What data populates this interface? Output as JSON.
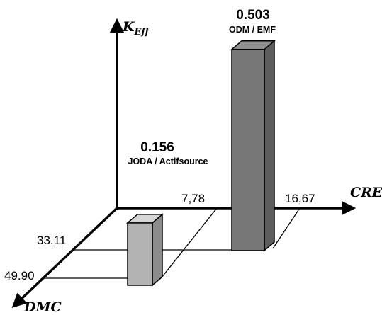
{
  "chart_data": {
    "type": "bar",
    "axes": {
      "z_label": {
        "symbol": "K",
        "subscript": "Eff"
      },
      "x_label": "CRE",
      "y_label": "DMC",
      "x_ticks": [
        "7,78",
        "16,67"
      ],
      "y_ticks": [
        "33.11",
        "49.90"
      ]
    },
    "bars": [
      {
        "name": "JODA / Actifsource",
        "value_label": "0.156",
        "value": 0.156,
        "x": 7.78,
        "y": 49.9,
        "color": "#b3b3b3"
      },
      {
        "name": "ODM / EMF",
        "value_label": "0.503",
        "value": 0.503,
        "x": 16.67,
        "y": 33.11,
        "color": "#777777"
      }
    ],
    "grid": false,
    "legend": "none"
  }
}
